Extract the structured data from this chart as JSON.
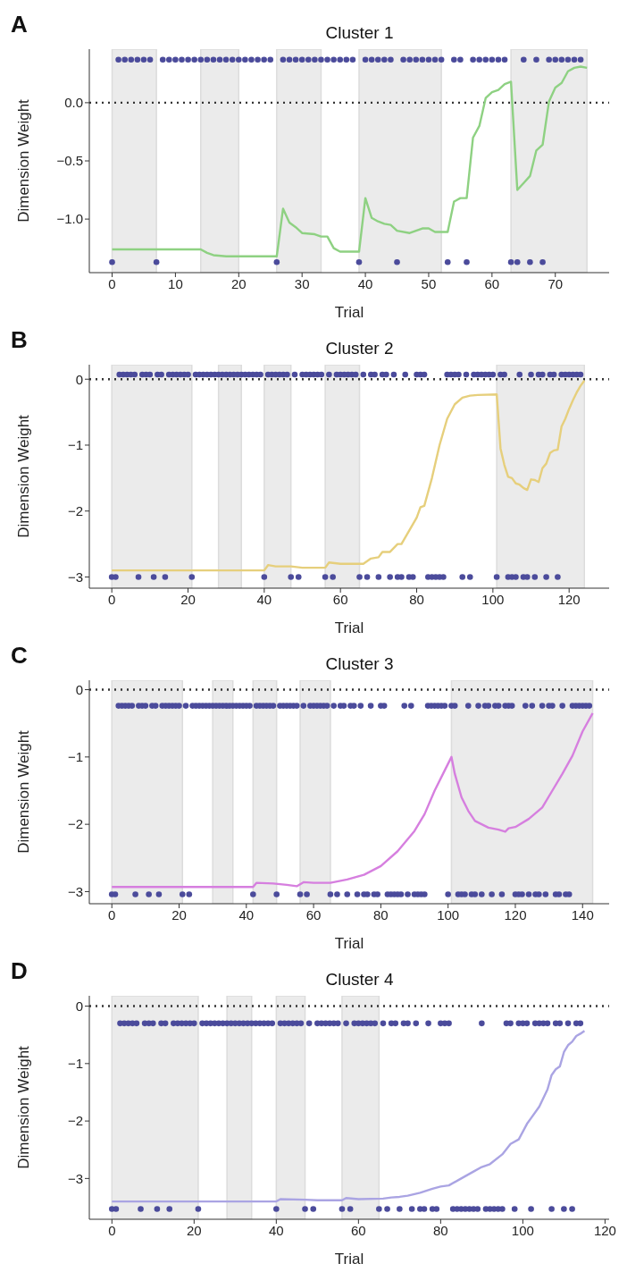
{
  "chart_data": [
    {
      "type": "line",
      "title": "Cluster 1",
      "xlabel": "Trial",
      "ylabel": "Dimension Weight",
      "annotations": [
        "A"
      ],
      "xlim": [
        -3.6,
        78.5
      ],
      "xticks": [
        0,
        10,
        20,
        30,
        40,
        50,
        60,
        70
      ],
      "ylim": [
        -1.46,
        0.46
      ],
      "yticks": [
        {
          "value": -1,
          "label": "−1.0"
        },
        {
          "value": -0.5,
          "label": "−0.5"
        },
        {
          "value": 0,
          "label": "0.0"
        }
      ],
      "ref_lines": [
        {
          "axis": "y",
          "value": 0,
          "color": "#333333",
          "line_style": "dotted"
        }
      ],
      "bands": [
        {
          "axis": "x",
          "from": 0,
          "to": 7,
          "color": "#ebebeb"
        },
        {
          "axis": "x",
          "from": 14,
          "to": 20,
          "color": "#ebebeb"
        },
        {
          "axis": "x",
          "from": 26,
          "to": 33,
          "color": "#ebebeb"
        },
        {
          "axis": "x",
          "from": 39,
          "to": 52,
          "color": "#ebebeb"
        },
        {
          "axis": "x",
          "from": 63,
          "to": 75,
          "color": "#ebebeb"
        }
      ],
      "series": [
        {
          "color": "#8ed182",
          "marker": "none",
          "x": [
            0,
            14,
            15,
            16,
            18,
            26,
            27,
            28,
            29,
            30,
            32,
            33,
            34,
            35,
            36,
            39,
            40,
            41,
            42,
            43,
            44,
            45,
            47,
            48,
            49,
            50,
            51,
            53,
            54,
            55,
            56,
            57,
            58,
            59,
            60,
            61,
            62,
            63,
            64,
            65,
            66,
            67,
            68,
            69,
            70,
            71,
            72,
            73,
            74,
            75
          ],
          "values": [
            -1.26,
            -1.26,
            -1.29,
            -1.31,
            -1.32,
            -1.32,
            -0.91,
            -1.03,
            -1.07,
            -1.12,
            -1.13,
            -1.15,
            -1.15,
            -1.25,
            -1.28,
            -1.28,
            -0.82,
            -0.99,
            -1.02,
            -1.04,
            -1.05,
            -1.1,
            -1.12,
            -1.1,
            -1.08,
            -1.08,
            -1.11,
            -1.11,
            -0.85,
            -0.82,
            -0.82,
            -0.3,
            -0.2,
            0.04,
            0.09,
            0.11,
            0.16,
            0.18,
            -0.75,
            -0.69,
            -0.63,
            -0.41,
            -0.36,
            0.01,
            0.13,
            0.17,
            0.27,
            0.3,
            0.31,
            0.3
          ]
        },
        {
          "type": "scatter",
          "color": "#4b4b9b",
          "marker": "circle",
          "x": [
            1,
            2,
            3,
            4,
            5,
            6,
            8,
            9,
            10,
            11,
            12,
            13,
            14,
            15,
            16,
            17,
            18,
            19,
            20,
            21,
            22,
            23,
            24,
            25,
            27,
            28,
            29,
            30,
            31,
            32,
            33,
            34,
            35,
            36,
            37,
            38,
            40,
            41,
            42,
            43,
            44,
            46,
            47,
            48,
            49,
            50,
            51,
            52,
            54,
            55,
            57,
            58,
            59,
            60,
            61,
            62,
            65,
            67,
            69,
            70,
            71,
            72,
            73,
            74
          ],
          "values": [
            0.37,
            0.37,
            0.37,
            0.37,
            0.37,
            0.37,
            0.37,
            0.37,
            0.37,
            0.37,
            0.37,
            0.37,
            0.37,
            0.37,
            0.37,
            0.37,
            0.37,
            0.37,
            0.37,
            0.37,
            0.37,
            0.37,
            0.37,
            0.37,
            0.37,
            0.37,
            0.37,
            0.37,
            0.37,
            0.37,
            0.37,
            0.37,
            0.37,
            0.37,
            0.37,
            0.37,
            0.37,
            0.37,
            0.37,
            0.37,
            0.37,
            0.37,
            0.37,
            0.37,
            0.37,
            0.37,
            0.37,
            0.37,
            0.37,
            0.37,
            0.37,
            0.37,
            0.37,
            0.37,
            0.37,
            0.37,
            0.37,
            0.37,
            0.37,
            0.37,
            0.37,
            0.37,
            0.37,
            0.37
          ]
        },
        {
          "type": "scatter",
          "color": "#4b4b9b",
          "marker": "circle",
          "x": [
            0,
            7,
            26,
            39,
            45,
            53,
            56,
            63,
            64,
            66,
            68
          ],
          "values": [
            -1.37,
            -1.37,
            -1.37,
            -1.37,
            -1.37,
            -1.37,
            -1.37,
            -1.37,
            -1.37,
            -1.37,
            -1.37
          ]
        }
      ]
    },
    {
      "type": "line",
      "title": "Cluster 2",
      "xlabel": "Trial",
      "ylabel": "Dimension Weight",
      "annotations": [
        "B"
      ],
      "xlim": [
        -5.9,
        130.5
      ],
      "xticks": [
        0,
        20,
        40,
        60,
        80,
        100,
        120
      ],
      "ylim": [
        -3.17,
        0.22
      ],
      "yticks": [
        {
          "value": -3,
          "label": "−3"
        },
        {
          "value": -2,
          "label": "−2"
        },
        {
          "value": -1,
          "label": "−1"
        },
        {
          "value": 0,
          "label": "0"
        }
      ],
      "ref_lines": [
        {
          "axis": "y",
          "value": 0,
          "color": "#333333",
          "line_style": "dotted"
        }
      ],
      "bands": [
        {
          "axis": "x",
          "from": 0,
          "to": 21,
          "color": "#ebebeb"
        },
        {
          "axis": "x",
          "from": 28,
          "to": 34,
          "color": "#ebebeb"
        },
        {
          "axis": "x",
          "from": 40,
          "to": 47,
          "color": "#ebebeb"
        },
        {
          "axis": "x",
          "from": 56,
          "to": 65,
          "color": "#ebebeb"
        },
        {
          "axis": "x",
          "from": 101,
          "to": 124,
          "color": "#ebebeb"
        }
      ],
      "series": [
        {
          "color": "#e6cf7c",
          "marker": "none",
          "x": [
            0,
            40,
            41,
            43,
            47,
            50,
            56,
            57,
            60,
            66,
            68,
            70,
            71,
            73,
            75,
            76,
            78,
            80,
            81,
            82,
            84,
            86,
            88,
            90,
            92,
            94,
            96,
            101,
            102,
            103,
            104,
            105,
            106,
            107,
            108,
            109,
            110,
            111,
            112,
            113,
            114,
            115,
            116,
            117,
            118,
            119,
            120,
            121,
            122,
            123,
            124
          ],
          "values": [
            -2.9,
            -2.9,
            -2.82,
            -2.84,
            -2.84,
            -2.86,
            -2.86,
            -2.78,
            -2.8,
            -2.8,
            -2.72,
            -2.7,
            -2.62,
            -2.62,
            -2.5,
            -2.5,
            -2.3,
            -2.1,
            -1.94,
            -1.92,
            -1.5,
            -1.0,
            -0.6,
            -0.38,
            -0.28,
            -0.25,
            -0.24,
            -0.23,
            -1.05,
            -1.3,
            -1.48,
            -1.5,
            -1.58,
            -1.6,
            -1.65,
            -1.68,
            -1.52,
            -1.53,
            -1.56,
            -1.35,
            -1.28,
            -1.12,
            -1.08,
            -1.07,
            -0.72,
            -0.6,
            -0.45,
            -0.32,
            -0.2,
            -0.1,
            -0.02
          ]
        },
        {
          "type": "scatter",
          "color": "#4b4b9b",
          "marker": "circle",
          "x": [
            2,
            3,
            4,
            5,
            6,
            8,
            9,
            10,
            12,
            13,
            15,
            16,
            17,
            18,
            19,
            20,
            22,
            23,
            24,
            25,
            26,
            27,
            28,
            29,
            30,
            31,
            32,
            33,
            34,
            35,
            36,
            37,
            38,
            39,
            41,
            42,
            43,
            44,
            45,
            46,
            48,
            50,
            51,
            52,
            53,
            54,
            55,
            57,
            59,
            60,
            61,
            62,
            63,
            64,
            66,
            68,
            69,
            71,
            72,
            74,
            77,
            80,
            81,
            82,
            88,
            89,
            90,
            91,
            93,
            95,
            96,
            97,
            98,
            99,
            100,
            102,
            103,
            107,
            110,
            112,
            113,
            115,
            116,
            118,
            119,
            120,
            121,
            122,
            123
          ],
          "values": [
            0.07,
            0.07,
            0.07,
            0.07,
            0.07,
            0.07,
            0.07,
            0.07,
            0.07,
            0.07,
            0.07,
            0.07,
            0.07,
            0.07,
            0.07,
            0.07,
            0.07,
            0.07,
            0.07,
            0.07,
            0.07,
            0.07,
            0.07,
            0.07,
            0.07,
            0.07,
            0.07,
            0.07,
            0.07,
            0.07,
            0.07,
            0.07,
            0.07,
            0.07,
            0.07,
            0.07,
            0.07,
            0.07,
            0.07,
            0.07,
            0.07,
            0.07,
            0.07,
            0.07,
            0.07,
            0.07,
            0.07,
            0.07,
            0.07,
            0.07,
            0.07,
            0.07,
            0.07,
            0.07,
            0.07,
            0.07,
            0.07,
            0.07,
            0.07,
            0.07,
            0.07,
            0.07,
            0.07,
            0.07,
            0.07,
            0.07,
            0.07,
            0.07,
            0.07,
            0.07,
            0.07,
            0.07,
            0.07,
            0.07,
            0.07,
            0.07,
            0.07,
            0.07,
            0.07,
            0.07,
            0.07,
            0.07,
            0.07,
            0.07,
            0.07,
            0.07,
            0.07,
            0.07,
            0.07
          ]
        },
        {
          "type": "scatter",
          "color": "#4b4b9b",
          "marker": "circle",
          "x": [
            0,
            1,
            7,
            11,
            14,
            21,
            40,
            47,
            49,
            56,
            58,
            65,
            67,
            70,
            73,
            75,
            76,
            78,
            79,
            83,
            84,
            85,
            86,
            87,
            92,
            94,
            101,
            104,
            105,
            106,
            108,
            109,
            111,
            114,
            117
          ],
          "values": [
            -3,
            -3,
            -3,
            -3,
            -3,
            -3,
            -3,
            -3,
            -3,
            -3,
            -3,
            -3,
            -3,
            -3,
            -3,
            -3,
            -3,
            -3,
            -3,
            -3,
            -3,
            -3,
            -3,
            -3,
            -3,
            -3,
            -3,
            -3,
            -3,
            -3,
            -3,
            -3,
            -3,
            -3,
            -3
          ]
        }
      ]
    },
    {
      "type": "line",
      "title": "Cluster 3",
      "xlabel": "Trial",
      "ylabel": "Dimension Weight",
      "annotations": [
        "C"
      ],
      "xlim": [
        -6.7,
        147.9
      ],
      "xticks": [
        0,
        20,
        40,
        60,
        80,
        100,
        120,
        140
      ],
      "ylim": [
        -3.18,
        0.14
      ],
      "yticks": [
        {
          "value": -3,
          "label": "−3"
        },
        {
          "value": -2,
          "label": "−2"
        },
        {
          "value": -1,
          "label": "−1"
        },
        {
          "value": 0,
          "label": "0"
        }
      ],
      "ref_lines": [
        {
          "axis": "y",
          "value": 0,
          "color": "#333333",
          "line_style": "dotted"
        }
      ],
      "bands": [
        {
          "axis": "x",
          "from": 0,
          "to": 21,
          "color": "#ebebeb"
        },
        {
          "axis": "x",
          "from": 30,
          "to": 36,
          "color": "#ebebeb"
        },
        {
          "axis": "x",
          "from": 42,
          "to": 49,
          "color": "#ebebeb"
        },
        {
          "axis": "x",
          "from": 56,
          "to": 65,
          "color": "#ebebeb"
        },
        {
          "axis": "x",
          "from": 101,
          "to": 143,
          "color": "#ebebeb"
        }
      ],
      "series": [
        {
          "color": "#d67fdf",
          "marker": "none",
          "x": [
            0,
            42,
            43,
            48,
            52,
            55,
            57,
            60,
            65,
            70,
            75,
            80,
            85,
            90,
            93,
            96,
            99,
            101,
            102,
            104,
            106,
            108,
            110,
            112,
            115,
            117,
            118,
            120,
            124,
            128,
            131,
            134,
            137,
            140,
            143
          ],
          "values": [
            -2.93,
            -2.93,
            -2.87,
            -2.88,
            -2.9,
            -2.92,
            -2.86,
            -2.87,
            -2.87,
            -2.82,
            -2.75,
            -2.62,
            -2.4,
            -2.1,
            -1.85,
            -1.5,
            -1.2,
            -1.0,
            -1.25,
            -1.6,
            -1.8,
            -1.95,
            -2.0,
            -2.05,
            -2.08,
            -2.11,
            -2.06,
            -2.04,
            -1.92,
            -1.75,
            -1.5,
            -1.25,
            -0.98,
            -0.62,
            -0.35
          ]
        },
        {
          "type": "scatter",
          "color": "#4b4b9b",
          "marker": "circle",
          "x": [
            2,
            3,
            4,
            5,
            6,
            8,
            9,
            10,
            12,
            13,
            15,
            16,
            17,
            18,
            19,
            20,
            22,
            24,
            25,
            26,
            27,
            28,
            29,
            30,
            31,
            32,
            33,
            34,
            35,
            36,
            37,
            38,
            39,
            40,
            41,
            43,
            44,
            45,
            46,
            47,
            48,
            50,
            51,
            52,
            53,
            54,
            55,
            57,
            59,
            60,
            61,
            62,
            63,
            64,
            66,
            68,
            69,
            71,
            72,
            74,
            77,
            80,
            81,
            87,
            89,
            94,
            95,
            96,
            97,
            98,
            99,
            101,
            102,
            106,
            109,
            111,
            112,
            114,
            115,
            117,
            118,
            119,
            123,
            125,
            128,
            130,
            131,
            134,
            137,
            138,
            139,
            140,
            141,
            142
          ],
          "values": [
            -0.24,
            -0.24,
            -0.24,
            -0.24,
            -0.24,
            -0.24,
            -0.24,
            -0.24,
            -0.24,
            -0.24,
            -0.24,
            -0.24,
            -0.24,
            -0.24,
            -0.24,
            -0.24,
            -0.24,
            -0.24,
            -0.24,
            -0.24,
            -0.24,
            -0.24,
            -0.24,
            -0.24,
            -0.24,
            -0.24,
            -0.24,
            -0.24,
            -0.24,
            -0.24,
            -0.24,
            -0.24,
            -0.24,
            -0.24,
            -0.24,
            -0.24,
            -0.24,
            -0.24,
            -0.24,
            -0.24,
            -0.24,
            -0.24,
            -0.24,
            -0.24,
            -0.24,
            -0.24,
            -0.24,
            -0.24,
            -0.24,
            -0.24,
            -0.24,
            -0.24,
            -0.24,
            -0.24,
            -0.24,
            -0.24,
            -0.24,
            -0.24,
            -0.24,
            -0.24,
            -0.24,
            -0.24,
            -0.24,
            -0.24,
            -0.24,
            -0.24,
            -0.24,
            -0.24,
            -0.24,
            -0.24,
            -0.24,
            -0.24,
            -0.24,
            -0.24,
            -0.24,
            -0.24,
            -0.24,
            -0.24,
            -0.24,
            -0.24,
            -0.24,
            -0.24,
            -0.24,
            -0.24,
            -0.24,
            -0.24,
            -0.24,
            -0.24,
            -0.24,
            -0.24,
            -0.24,
            -0.24,
            -0.24,
            -0.24
          ]
        },
        {
          "type": "scatter",
          "color": "#4b4b9b",
          "marker": "circle",
          "x": [
            0,
            1,
            7,
            11,
            14,
            21,
            23,
            42,
            49,
            56,
            58,
            65,
            67,
            70,
            73,
            75,
            76,
            78,
            79,
            82,
            83,
            84,
            85,
            86,
            88,
            90,
            91,
            92,
            93,
            100,
            103,
            104,
            105,
            107,
            108,
            110,
            113,
            116,
            120,
            121,
            122,
            124,
            126,
            127,
            129,
            132,
            133,
            135,
            136
          ],
          "values": [
            -3.04,
            -3.04,
            -3.04,
            -3.04,
            -3.04,
            -3.04,
            -3.04,
            -3.04,
            -3.04,
            -3.04,
            -3.04,
            -3.04,
            -3.04,
            -3.04,
            -3.04,
            -3.04,
            -3.04,
            -3.04,
            -3.04,
            -3.04,
            -3.04,
            -3.04,
            -3.04,
            -3.04,
            -3.04,
            -3.04,
            -3.04,
            -3.04,
            -3.04,
            -3.04,
            -3.04,
            -3.04,
            -3.04,
            -3.04,
            -3.04,
            -3.04,
            -3.04,
            -3.04,
            -3.04,
            -3.04,
            -3.04,
            -3.04,
            -3.04,
            -3.04,
            -3.04,
            -3.04,
            -3.04,
            -3.04,
            -3.04
          ]
        }
      ]
    },
    {
      "type": "line",
      "title": "Cluster 4",
      "xlabel": "Trial",
      "ylabel": "Dimension Weight",
      "annotations": [
        "D"
      ],
      "xlim": [
        -5.5,
        121
      ],
      "xticks": [
        0,
        20,
        40,
        60,
        80,
        100,
        120
      ],
      "ylim": [
        -3.71,
        0.18
      ],
      "yticks": [
        {
          "value": -3,
          "label": "−3"
        },
        {
          "value": -2,
          "label": "−2"
        },
        {
          "value": -1,
          "label": "−1"
        },
        {
          "value": 0,
          "label": "0"
        }
      ],
      "ref_lines": [
        {
          "axis": "y",
          "value": 0,
          "color": "#333333",
          "line_style": "dotted"
        }
      ],
      "bands": [
        {
          "axis": "x",
          "from": 0,
          "to": 21,
          "color": "#ebebeb"
        },
        {
          "axis": "x",
          "from": 28,
          "to": 34,
          "color": "#ebebeb"
        },
        {
          "axis": "x",
          "from": 40,
          "to": 47,
          "color": "#ebebeb"
        },
        {
          "axis": "x",
          "from": 56,
          "to": 65,
          "color": "#ebebeb"
        }
      ],
      "series": [
        {
          "color": "#aaa4e3",
          "marker": "none",
          "x": [
            0,
            40,
            41,
            47,
            50,
            56,
            57,
            60,
            66,
            68,
            70,
            72,
            75,
            78,
            80,
            82,
            85,
            88,
            90,
            92,
            95,
            97,
            99,
            101,
            102,
            104,
            106,
            107,
            108,
            109,
            110,
            111,
            112,
            113,
            114,
            115
          ],
          "values": [
            -3.4,
            -3.4,
            -3.36,
            -3.37,
            -3.38,
            -3.38,
            -3.34,
            -3.36,
            -3.35,
            -3.33,
            -3.32,
            -3.3,
            -3.25,
            -3.18,
            -3.14,
            -3.12,
            -3.0,
            -2.88,
            -2.8,
            -2.75,
            -2.58,
            -2.4,
            -2.32,
            -2.05,
            -1.95,
            -1.75,
            -1.45,
            -1.2,
            -1.1,
            -1.05,
            -0.8,
            -0.68,
            -0.62,
            -0.52,
            -0.48,
            -0.43
          ]
        },
        {
          "type": "scatter",
          "color": "#4b4b9b",
          "marker": "circle",
          "x": [
            2,
            3,
            4,
            5,
            6,
            8,
            9,
            10,
            12,
            13,
            15,
            16,
            17,
            18,
            19,
            20,
            22,
            23,
            24,
            25,
            26,
            27,
            28,
            29,
            30,
            31,
            32,
            33,
            34,
            35,
            36,
            37,
            38,
            39,
            41,
            42,
            43,
            44,
            45,
            46,
            48,
            50,
            51,
            52,
            53,
            54,
            55,
            57,
            59,
            60,
            61,
            62,
            63,
            64,
            66,
            68,
            69,
            71,
            72,
            74,
            77,
            80,
            81,
            82,
            90,
            96,
            97,
            99,
            100,
            101,
            103,
            104,
            105,
            106,
            108,
            109,
            111,
            113,
            114
          ],
          "values": [
            -0.3,
            -0.3,
            -0.3,
            -0.3,
            -0.3,
            -0.3,
            -0.3,
            -0.3,
            -0.3,
            -0.3,
            -0.3,
            -0.3,
            -0.3,
            -0.3,
            -0.3,
            -0.3,
            -0.3,
            -0.3,
            -0.3,
            -0.3,
            -0.3,
            -0.3,
            -0.3,
            -0.3,
            -0.3,
            -0.3,
            -0.3,
            -0.3,
            -0.3,
            -0.3,
            -0.3,
            -0.3,
            -0.3,
            -0.3,
            -0.3,
            -0.3,
            -0.3,
            -0.3,
            -0.3,
            -0.3,
            -0.3,
            -0.3,
            -0.3,
            -0.3,
            -0.3,
            -0.3,
            -0.3,
            -0.3,
            -0.3,
            -0.3,
            -0.3,
            -0.3,
            -0.3,
            -0.3,
            -0.3,
            -0.3,
            -0.3,
            -0.3,
            -0.3,
            -0.3,
            -0.3,
            -0.3,
            -0.3,
            -0.3,
            -0.3,
            -0.3,
            -0.3,
            -0.3,
            -0.3,
            -0.3,
            -0.3,
            -0.3,
            -0.3,
            -0.3,
            -0.3,
            -0.3,
            -0.3,
            -0.3,
            -0.3
          ]
        },
        {
          "type": "scatter",
          "color": "#4b4b9b",
          "marker": "circle",
          "x": [
            0,
            1,
            7,
            11,
            14,
            21,
            40,
            47,
            49,
            56,
            58,
            65,
            67,
            70,
            73,
            75,
            76,
            78,
            79,
            83,
            84,
            85,
            86,
            87,
            88,
            89,
            91,
            92,
            93,
            94,
            95,
            98,
            102,
            107,
            110,
            112
          ],
          "values": [
            -3.53,
            -3.53,
            -3.53,
            -3.53,
            -3.53,
            -3.53,
            -3.53,
            -3.53,
            -3.53,
            -3.53,
            -3.53,
            -3.53,
            -3.53,
            -3.53,
            -3.53,
            -3.53,
            -3.53,
            -3.53,
            -3.53,
            -3.53,
            -3.53,
            -3.53,
            -3.53,
            -3.53,
            -3.53,
            -3.53,
            -3.53,
            -3.53,
            -3.53,
            -3.53,
            -3.53,
            -3.53,
            -3.53,
            -3.53,
            -3.53,
            -3.53
          ]
        }
      ]
    }
  ]
}
